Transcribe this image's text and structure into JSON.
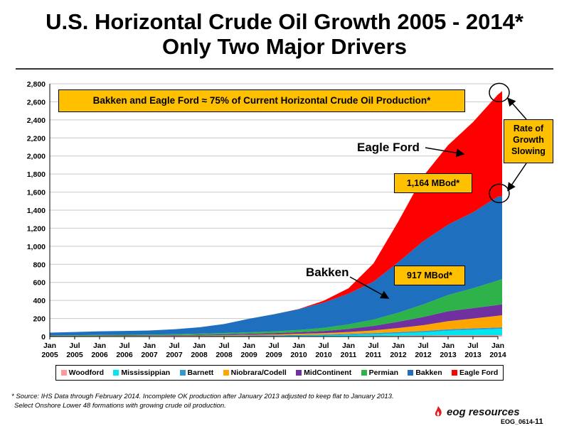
{
  "title_line1": "U.S. Horizontal Crude Oil Growth 2005 - 2014*",
  "title_line2": "Only Two Major Drivers",
  "banner": "Bakken and Eagle Ford ≈ 75% of Current Horizontal Crude Oil Production*",
  "growth_callout": [
    "Rate of",
    "Growth",
    "Slowing"
  ],
  "eagle_ford_label": "Eagle Ford",
  "bakken_label": "Bakken",
  "eagle_ford_callout": "1,164 MBod*",
  "bakken_callout": "917 MBod*",
  "footnote_line1": "* Source: IHS Data through February 2014. Incomplete OK production after January 2013 adjusted to keep flat to January 2013.",
  "footnote_line2": "Select Onshore Lower 48 formations with growing crude oil production.",
  "logo_text": "eog resources",
  "doc_code": "EOG_0614-",
  "page_number": "11",
  "chart_data": {
    "type": "area",
    "stacked": true,
    "ylim": [
      0,
      2800
    ],
    "y_ticks": [
      "0",
      "200",
      "400",
      "600",
      "800",
      "1,000",
      "1,200",
      "1,400",
      "1,600",
      "1,800",
      "2,000",
      "2,200",
      "2,400",
      "2,600",
      "2,800"
    ],
    "x_tick_labels": [
      [
        "Jan",
        "2005"
      ],
      [
        "Jul",
        "2005"
      ],
      [
        "Jan",
        "2006"
      ],
      [
        "Jul",
        "2006"
      ],
      [
        "Jan",
        "2007"
      ],
      [
        "Jul",
        "2007"
      ],
      [
        "Jan",
        "2008"
      ],
      [
        "Jul",
        "2008"
      ],
      [
        "Jan",
        "2009"
      ],
      [
        "Jul",
        "2009"
      ],
      [
        "Jan",
        "2010"
      ],
      [
        "Jul",
        "2010"
      ],
      [
        "Jan",
        "2011"
      ],
      [
        "Jul",
        "2011"
      ],
      [
        "Jan",
        "2012"
      ],
      [
        "Jul",
        "2012"
      ],
      [
        "Jan",
        "2013"
      ],
      [
        "Jul",
        "2013"
      ],
      [
        "Jan",
        "2014"
      ]
    ],
    "grid": "horizontal",
    "legend_position": "bottom",
    "x": [
      "2005-01",
      "2005-07",
      "2006-01",
      "2006-07",
      "2007-01",
      "2007-07",
      "2008-01",
      "2008-07",
      "2009-01",
      "2009-07",
      "2010-01",
      "2010-07",
      "2011-01",
      "2011-07",
      "2012-01",
      "2012-07",
      "2013-01",
      "2013-07",
      "2014-01",
      "2014-02"
    ],
    "series": [
      {
        "name": "Woodford",
        "color": "#ff9999",
        "values": [
          0,
          0,
          0,
          0,
          0,
          0,
          0,
          0,
          0,
          0,
          2,
          3,
          5,
          7,
          10,
          12,
          15,
          15,
          15,
          15
        ]
      },
      {
        "name": "Mississippian",
        "color": "#00e5ee",
        "values": [
          1,
          1,
          1,
          1,
          1,
          1,
          1,
          2,
          3,
          4,
          6,
          9,
          13,
          18,
          25,
          35,
          50,
          60,
          70,
          72
        ]
      },
      {
        "name": "Barnett",
        "color": "#3399cc",
        "values": [
          2,
          3,
          3,
          4,
          4,
          5,
          6,
          7,
          8,
          9,
          10,
          11,
          12,
          13,
          14,
          14,
          15,
          15,
          15,
          15
        ]
      },
      {
        "name": "Niobrara/Codell",
        "color": "#ffa500",
        "values": [
          2,
          2,
          3,
          3,
          3,
          4,
          5,
          6,
          8,
          10,
          12,
          14,
          20,
          30,
          45,
          65,
          90,
          110,
          130,
          135
        ]
      },
      {
        "name": "MidContinent",
        "color": "#7030a0",
        "values": [
          3,
          3,
          4,
          4,
          5,
          6,
          8,
          10,
          12,
          14,
          18,
          24,
          35,
          50,
          70,
          90,
          110,
          115,
          120,
          120
        ]
      },
      {
        "name": "Permian",
        "color": "#2db34a",
        "values": [
          5,
          6,
          7,
          8,
          9,
          10,
          12,
          14,
          16,
          20,
          25,
          35,
          50,
          70,
          100,
          140,
          180,
          220,
          270,
          280
        ]
      },
      {
        "name": "Bakken",
        "color": "#1f6fbf",
        "values": [
          30,
          35,
          40,
          42,
          45,
          55,
          70,
          100,
          150,
          190,
          230,
          280,
          340,
          420,
          560,
          700,
          780,
          840,
          930,
          917
        ]
      },
      {
        "name": "Eagle Ford",
        "color": "#ff0000",
        "values": [
          0,
          0,
          0,
          0,
          0,
          0,
          0,
          0,
          0,
          0,
          2,
          20,
          60,
          200,
          450,
          720,
          880,
          1000,
          1130,
          1164
        ]
      }
    ]
  },
  "colors": {
    "callout_fill": "#ffc000",
    "grid": "#c8c8c8"
  }
}
